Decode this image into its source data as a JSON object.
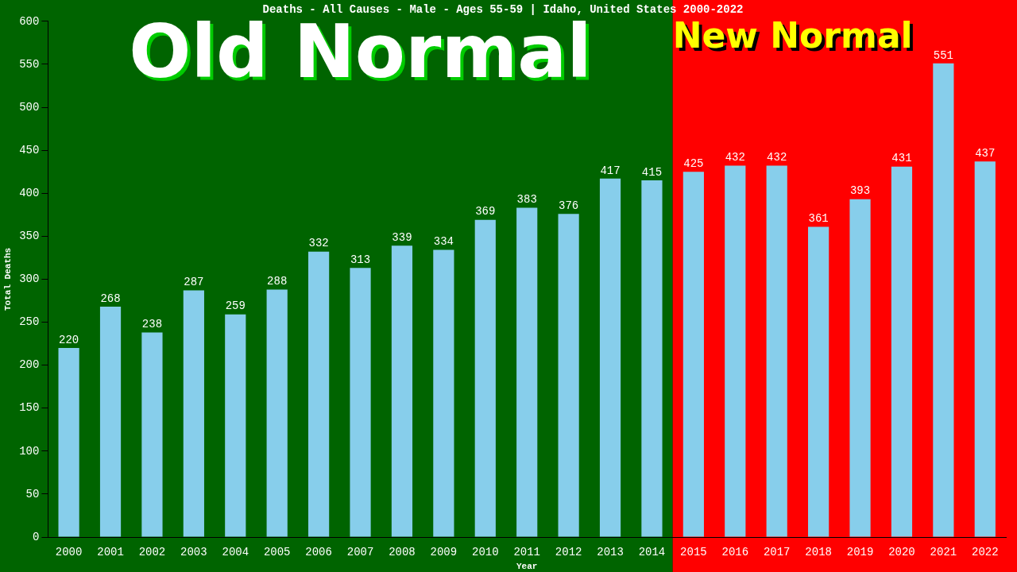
{
  "chart_data": {
    "type": "bar",
    "title": "Deaths - All Causes - Male - Ages 55-59 | Idaho, United States 2000-2022",
    "xlabel": "Year",
    "ylabel": "Total Deaths",
    "categories": [
      "2000",
      "2001",
      "2002",
      "2003",
      "2004",
      "2005",
      "2006",
      "2007",
      "2008",
      "2009",
      "2010",
      "2011",
      "2012",
      "2013",
      "2014",
      "2015",
      "2016",
      "2017",
      "2018",
      "2019",
      "2020",
      "2021",
      "2022"
    ],
    "values": [
      220,
      268,
      238,
      287,
      259,
      288,
      332,
      313,
      339,
      334,
      369,
      383,
      376,
      417,
      415,
      425,
      432,
      432,
      361,
      393,
      431,
      551,
      437
    ],
    "color": "#87ceeb",
    "ylim": [
      0,
      600
    ],
    "yticks": [
      0,
      50,
      100,
      150,
      200,
      250,
      300,
      350,
      400,
      450,
      500,
      550,
      600
    ],
    "grid": false,
    "legend": false,
    "data_labels": true,
    "bands": [
      {
        "axis": "x",
        "from": "2000",
        "to": "2014",
        "label": "Old Normal",
        "color": "#006400"
      },
      {
        "axis": "x",
        "from": "2015",
        "to": "2022",
        "label": "New Normal",
        "color": "#ff0000"
      }
    ]
  }
}
